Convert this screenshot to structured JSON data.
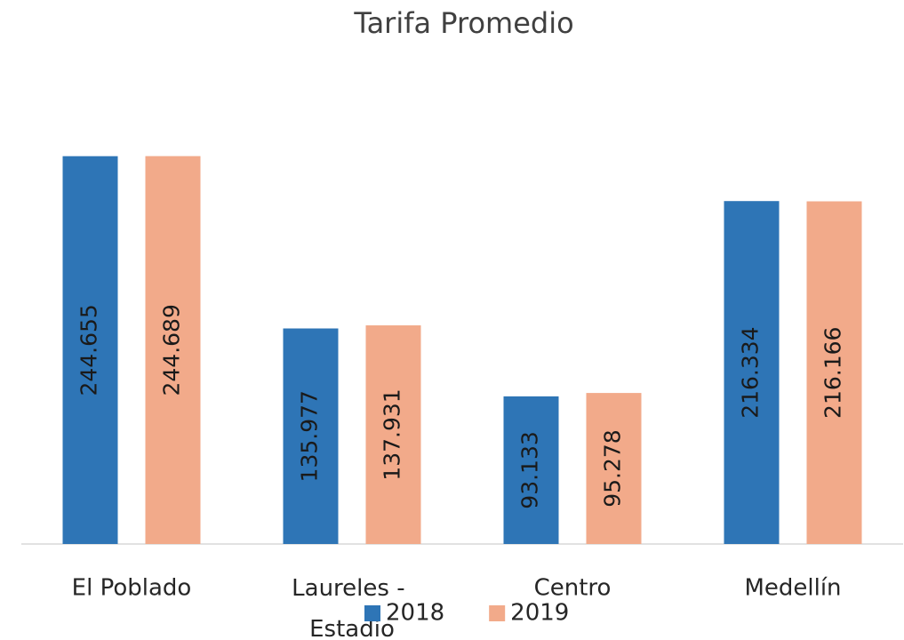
{
  "chart_data": {
    "type": "bar",
    "title": "Tarifa Promedio",
    "categories": [
      "El Poblado",
      "Laureles - Estadio",
      "Centro",
      "Medellín"
    ],
    "series": [
      {
        "name": "2018",
        "color": "#2e75b6",
        "values": [
          244655,
          135977,
          93133,
          216334
        ],
        "value_labels": [
          "244.655",
          "135.977",
          "93.133",
          "216.334"
        ]
      },
      {
        "name": "2019",
        "color": "#f2aa8a",
        "values": [
          244689,
          137931,
          95278,
          216166
        ],
        "value_labels": [
          "244.689",
          "137.931",
          "95.278",
          "216.166"
        ]
      }
    ],
    "ylim": [
      0,
      300000
    ],
    "legend": "bottom"
  }
}
